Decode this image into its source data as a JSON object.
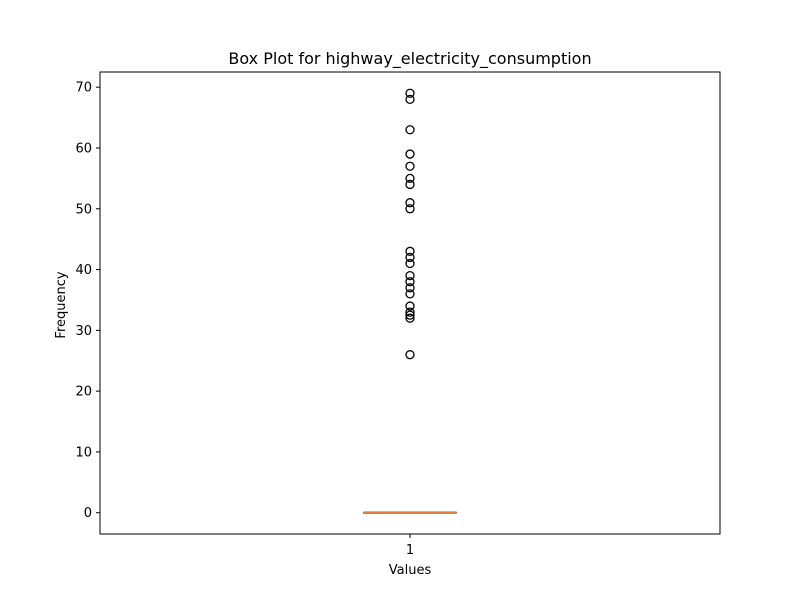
{
  "chart_data": {
    "type": "box",
    "title": "Box Plot for highway_electricity_consumption",
    "xlabel": "Values",
    "ylabel": "Frequency",
    "categories": [
      "1"
    ],
    "yticks": [
      0,
      10,
      20,
      30,
      40,
      50,
      60,
      70
    ],
    "ylim": [
      -3.5,
      72.5
    ],
    "box": {
      "min": 0,
      "q1": 0,
      "median": 0,
      "q3": 0,
      "max": 0
    },
    "outliers": [
      26,
      32,
      32.5,
      33,
      34,
      36,
      37,
      38,
      39,
      41,
      42,
      43,
      50,
      51,
      54,
      55,
      57,
      59,
      63,
      68,
      69
    ],
    "grid": false,
    "colors": {
      "median": "#e0803c",
      "box": "#000000",
      "outlier": "#000000"
    }
  }
}
